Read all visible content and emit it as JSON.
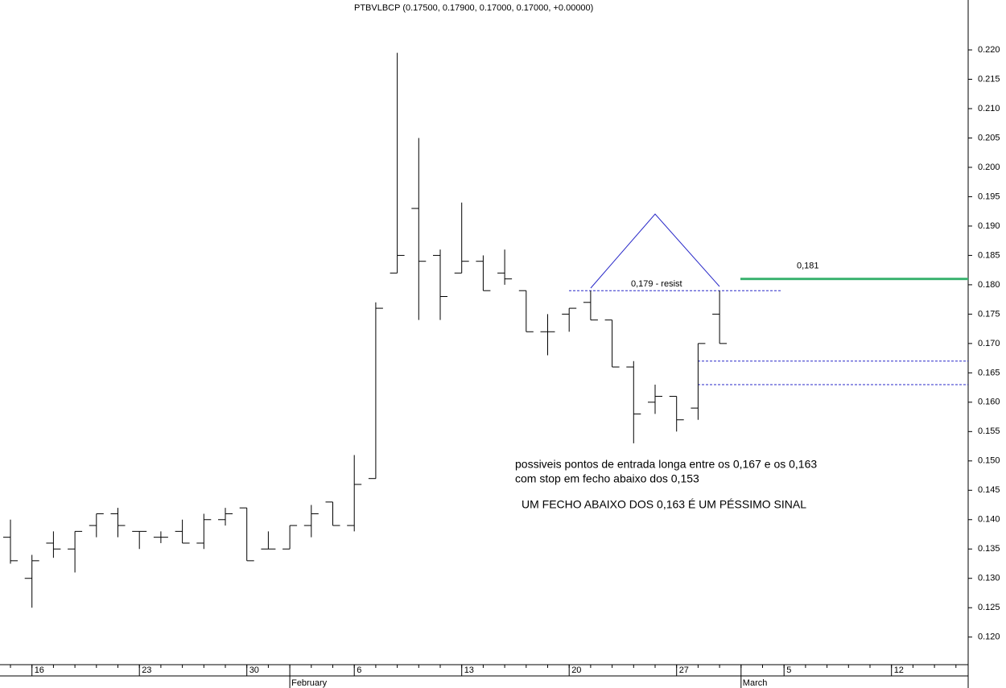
{
  "chart_data": {
    "type": "ohlc",
    "title": "PTBVLBCP (0.17500, 0.17900, 0.17000, 0.17000, +0.00000)",
    "categories": [
      null,
      "16",
      null,
      null,
      null,
      null,
      "23",
      null,
      null,
      null,
      null,
      "30",
      null,
      null,
      null,
      null,
      "6",
      null,
      null,
      null,
      null,
      "13",
      null,
      null,
      null,
      null,
      "20",
      null,
      null,
      null,
      null,
      "27",
      null,
      null
    ],
    "extra_ticks": [
      "5",
      "12"
    ],
    "months": [
      "February",
      "March"
    ],
    "open": [
      0.137,
      0.13,
      0.136,
      0.135,
      0.139,
      0.141,
      0.138,
      0.137,
      0.138,
      0.136,
      0.14,
      0.142,
      0.135,
      0.135,
      0.139,
      0.143,
      0.139,
      0.147,
      0.182,
      0.193,
      0.185,
      0.182,
      0.184,
      0.182,
      0.179,
      0.172,
      0.175,
      0.177,
      0.174,
      0.166,
      0.16,
      0.161,
      0.159,
      0.175
    ],
    "high": [
      0.14,
      0.134,
      0.138,
      0.138,
      0.141,
      0.142,
      0.138,
      0.138,
      0.14,
      0.141,
      0.142,
      0.142,
      0.138,
      0.139,
      0.1425,
      0.143,
      0.151,
      0.177,
      0.2195,
      0.205,
      0.186,
      0.194,
      0.185,
      0.186,
      0.179,
      0.175,
      0.176,
      0.179,
      0.174,
      0.167,
      0.163,
      0.161,
      0.17,
      0.179
    ],
    "low": [
      0.1325,
      0.125,
      0.1335,
      0.131,
      0.137,
      0.137,
      0.135,
      0.136,
      0.136,
      0.135,
      0.139,
      0.133,
      0.135,
      0.135,
      0.137,
      0.139,
      0.138,
      0.147,
      0.182,
      0.174,
      0.174,
      0.182,
      0.179,
      0.18,
      0.172,
      0.168,
      0.172,
      0.174,
      0.166,
      0.153,
      0.158,
      0.155,
      0.157,
      0.17
    ],
    "close": [
      0.133,
      0.133,
      0.135,
      0.138,
      0.141,
      0.139,
      0.138,
      0.137,
      0.136,
      0.14,
      0.141,
      0.133,
      0.135,
      0.139,
      0.141,
      0.139,
      0.146,
      0.176,
      0.185,
      0.184,
      0.178,
      0.184,
      0.179,
      0.181,
      0.172,
      0.172,
      0.176,
      0.174,
      0.166,
      0.158,
      0.161,
      0.157,
      0.17,
      0.17
    ],
    "color": "#000000",
    "ylim": [
      0.1153,
      0.2285
    ],
    "yticks": [
      {
        "value": 0.12,
        "label": "0.120"
      },
      0.125,
      {
        "value": 0.13,
        "label": "0.130"
      },
      0.135,
      {
        "value": 0.14,
        "label": "0.140"
      },
      0.145,
      {
        "value": 0.15,
        "label": "0.150"
      },
      0.155,
      {
        "value": 0.16,
        "label": "0.160"
      },
      0.165,
      {
        "value": 0.17,
        "label": "0.170"
      },
      0.175,
      {
        "value": 0.18,
        "label": "0.180"
      },
      0.185,
      {
        "value": 0.19,
        "label": "0.190"
      },
      0.195,
      {
        "value": 0.2,
        "label": "0.200"
      },
      0.205,
      {
        "value": 0.21,
        "label": "0.210"
      },
      0.215,
      {
        "value": 0.22,
        "label": "0.220"
      }
    ],
    "levels": [
      {
        "value": 0.179,
        "label": "0,179 - resist",
        "color": "#2828c8",
        "style": "dotted"
      },
      {
        "value": 0.167,
        "color": "#2828c8",
        "style": "dotted"
      },
      {
        "value": 0.163,
        "color": "#2828c8",
        "style": "dotted"
      },
      {
        "value": 0.181,
        "label": "0,181",
        "color": "#3cb371",
        "style": "solid"
      }
    ],
    "notes": [
      "possiveis pontos de entrada longa  entre os 0,167 e os 0,163",
      "com stop em fecho abaixo dos 0,153"
    ],
    "notes_color": "#2020d0",
    "warning": "UM FECHO ABAIXO DOS 0,163 É UM PÉSSIMO SINAL",
    "warning_color": "#e01010"
  }
}
